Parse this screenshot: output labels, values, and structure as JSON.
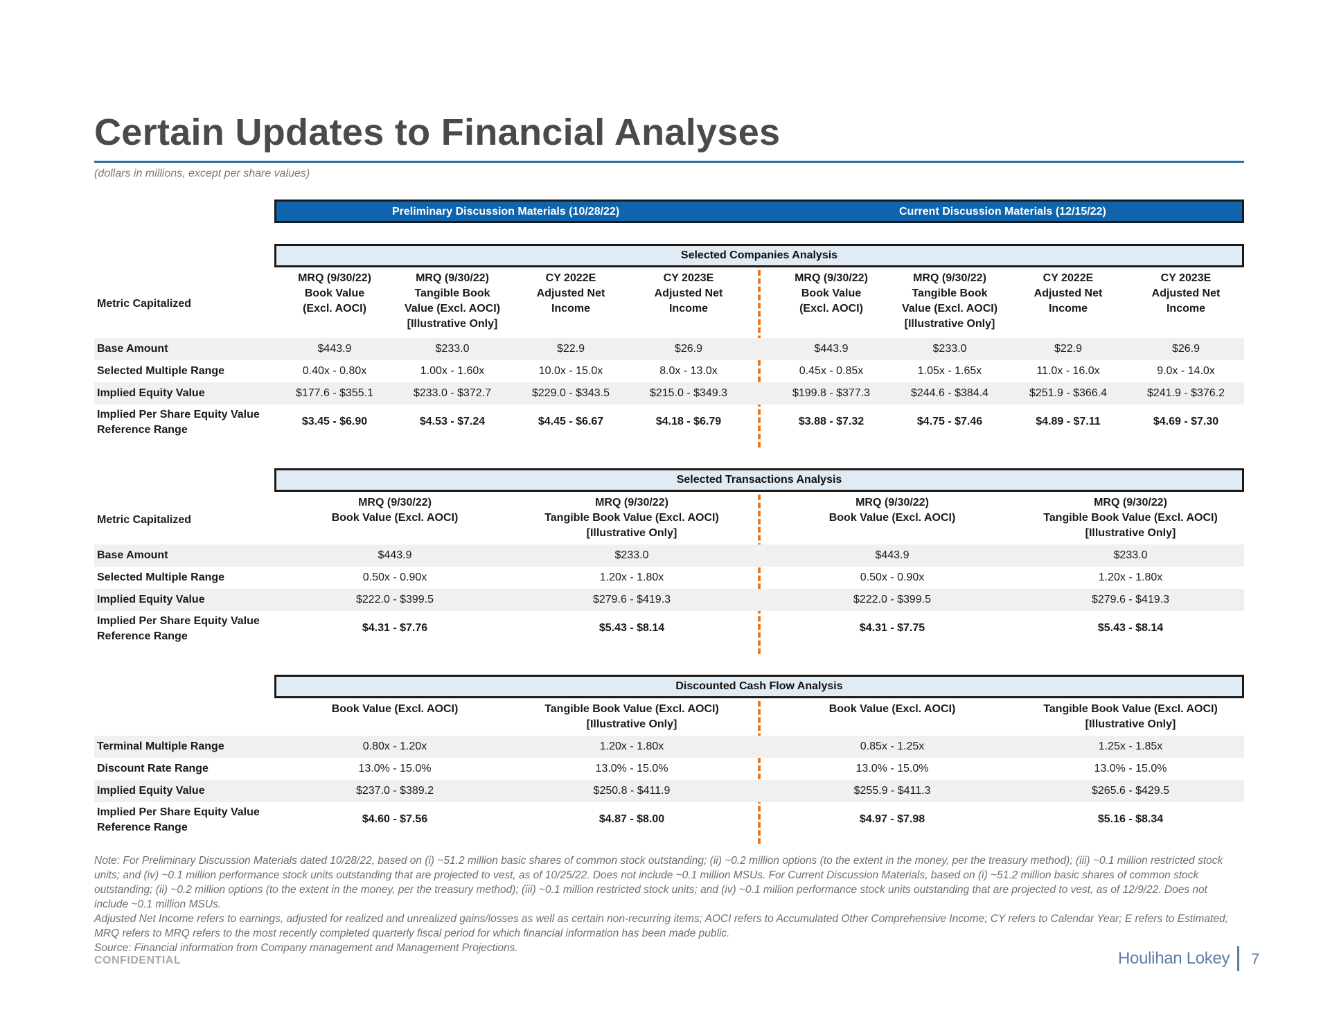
{
  "header": {
    "title": "Certain Updates to Financial Analyses",
    "subtitle": "(dollars in millions, except per share values)"
  },
  "banner": {
    "left": "Preliminary Discussion Materials (10/28/22)",
    "right": "Current Discussion Materials (12/15/22)"
  },
  "companies": {
    "title": "Selected Companies Analysis",
    "metric_label": "Metric Capitalized",
    "columns": [
      [
        "MRQ (9/30/22)",
        "Book Value",
        "(Excl. AOCI)"
      ],
      [
        "MRQ (9/30/22)",
        "Tangible Book",
        "Value (Excl. AOCI)",
        "[Illustrative Only]"
      ],
      [
        "CY 2022E",
        "Adjusted Net",
        "Income"
      ],
      [
        "CY 2023E",
        "Adjusted Net",
        "Income"
      ],
      [
        "MRQ (9/30/22)",
        "Book Value",
        "(Excl. AOCI)"
      ],
      [
        "MRQ (9/30/22)",
        "Tangible Book",
        "Value (Excl. AOCI)",
        "[Illustrative Only]"
      ],
      [
        "CY 2022E",
        "Adjusted Net",
        "Income"
      ],
      [
        "CY 2023E",
        "Adjusted Net",
        "Income"
      ]
    ],
    "rows": [
      {
        "label": [
          "Base Amount"
        ],
        "shade": true,
        "bold": false,
        "values": [
          "$443.9",
          "$233.0",
          "$22.9",
          "$26.9",
          "$443.9",
          "$233.0",
          "$22.9",
          "$26.9"
        ]
      },
      {
        "label": [
          "Selected Multiple Range"
        ],
        "shade": false,
        "bold": false,
        "values": [
          "0.40x - 0.80x",
          "1.00x - 1.60x",
          "10.0x - 15.0x",
          "8.0x - 13.0x",
          "0.45x - 0.85x",
          "1.05x - 1.65x",
          "11.0x - 16.0x",
          "9.0x - 14.0x"
        ]
      },
      {
        "label": [
          "Implied Equity Value"
        ],
        "shade": true,
        "bold": false,
        "values": [
          "$177.6 - $355.1",
          "$233.0 - $372.7",
          "$229.0 - $343.5",
          "$215.0 - $349.3",
          "$199.8 - $377.3",
          "$244.6 - $384.4",
          "$251.9 - $366.4",
          "$241.9 - $376.2"
        ]
      },
      {
        "label": [
          "Implied Per Share Equity Value",
          "Reference Range"
        ],
        "shade": false,
        "bold": true,
        "values": [
          "$3.45 - $6.90",
          "$4.53 - $7.24",
          "$4.45 - $6.67",
          "$4.18 - $6.79",
          "$3.88 - $7.32",
          "$4.75 - $7.46",
          "$4.89 - $7.11",
          "$4.69 - $7.30"
        ]
      }
    ]
  },
  "transactions": {
    "title": "Selected Transactions Analysis",
    "metric_label": "Metric Capitalized",
    "columns": [
      [
        "MRQ (9/30/22)",
        "Book Value (Excl. AOCI)"
      ],
      [
        "MRQ (9/30/22)",
        "Tangible Book Value (Excl. AOCI)",
        "[Illustrative Only]"
      ],
      [
        "MRQ (9/30/22)",
        "Book Value (Excl. AOCI)"
      ],
      [
        "MRQ (9/30/22)",
        "Tangible Book Value (Excl. AOCI)",
        "[Illustrative Only]"
      ]
    ],
    "rows": [
      {
        "label": [
          "Base Amount"
        ],
        "shade": true,
        "bold": false,
        "values": [
          "$443.9",
          "$233.0",
          "$443.9",
          "$233.0"
        ]
      },
      {
        "label": [
          "Selected Multiple Range"
        ],
        "shade": false,
        "bold": false,
        "values": [
          "0.50x - 0.90x",
          "1.20x - 1.80x",
          "0.50x - 0.90x",
          "1.20x - 1.80x"
        ]
      },
      {
        "label": [
          "Implied Equity Value"
        ],
        "shade": true,
        "bold": false,
        "values": [
          "$222.0 - $399.5",
          "$279.6 - $419.3",
          "$222.0 - $399.5",
          "$279.6 - $419.3"
        ]
      },
      {
        "label": [
          "Implied Per Share Equity Value",
          "Reference Range"
        ],
        "shade": false,
        "bold": true,
        "values": [
          "$4.31 - $7.76",
          "$5.43 - $8.14",
          "$4.31 - $7.75",
          "$5.43 - $8.14"
        ]
      }
    ]
  },
  "dcf": {
    "title": "Discounted Cash Flow Analysis",
    "columns": [
      [
        "Book Value (Excl. AOCI)"
      ],
      [
        "Tangible Book Value (Excl. AOCI)",
        "[Illustrative Only]"
      ],
      [
        "Book Value (Excl. AOCI)"
      ],
      [
        "Tangible Book Value (Excl. AOCI)",
        "[Illustrative Only]"
      ]
    ],
    "rows": [
      {
        "label": [
          "Terminal Multiple Range"
        ],
        "shade": true,
        "bold": false,
        "values": [
          "0.80x - 1.20x",
          "1.20x - 1.80x",
          "0.85x - 1.25x",
          "1.25x - 1.85x"
        ]
      },
      {
        "label": [
          "Discount Rate Range"
        ],
        "shade": false,
        "bold": false,
        "values": [
          "13.0% - 15.0%",
          "13.0% - 15.0%",
          "13.0% - 15.0%",
          "13.0% - 15.0%"
        ]
      },
      {
        "label": [
          "Implied Equity Value"
        ],
        "shade": true,
        "bold": false,
        "values": [
          "$237.0 - $389.2",
          "$250.8 - $411.9",
          "$255.9 - $411.3",
          "$265.6 - $429.5"
        ]
      },
      {
        "label": [
          "Implied Per Share Equity Value",
          "Reference Range"
        ],
        "shade": false,
        "bold": true,
        "values": [
          "$4.60 - $7.56",
          "$4.87 - $8.00",
          "$4.97 - $7.98",
          "$5.16 - $8.34"
        ]
      }
    ]
  },
  "footnotes": [
    "Note: For Preliminary Discussion Materials dated 10/28/22, based on (i) ~51.2 million basic shares of common stock outstanding; (ii) ~0.2 million options (to the extent in the money, per the treasury method); (iii) ~0.1 million restricted stock units; and (iv) ~0.1 million performance stock units outstanding that are projected to vest, as of 10/25/22. Does not include ~0.1 million MSUs. For Current Discussion Materials, based on (i) ~51.2 million basic shares of common stock outstanding; (ii) ~0.2 million options (to the extent in the money, per the treasury method); (iii) ~0.1 million restricted stock units; and (iv) ~0.1 million performance stock units outstanding that are projected to vest, as of 12/9/22. Does not include ~0.1 million MSUs.",
    "Adjusted Net Income refers to earnings, adjusted for realized and unrealized gains/losses as well as certain non-recurring items; AOCI refers to Accumulated Other Comprehensive Income; CY refers to Calendar Year; E refers to Estimated; MRQ refers to MRQ refers to the most recently completed quarterly fiscal period for which financial information has been made public.",
    "Source: Financial information from Company management and Management Projections."
  ],
  "footer": {
    "confidential": "CONFIDENTIAL",
    "logo": "Houlihan Lokey",
    "page": "7"
  },
  "colors": {
    "accent_blue": "#0f64ad",
    "divider_orange": "#e8771f",
    "header_fill": "#e1ebf4"
  }
}
